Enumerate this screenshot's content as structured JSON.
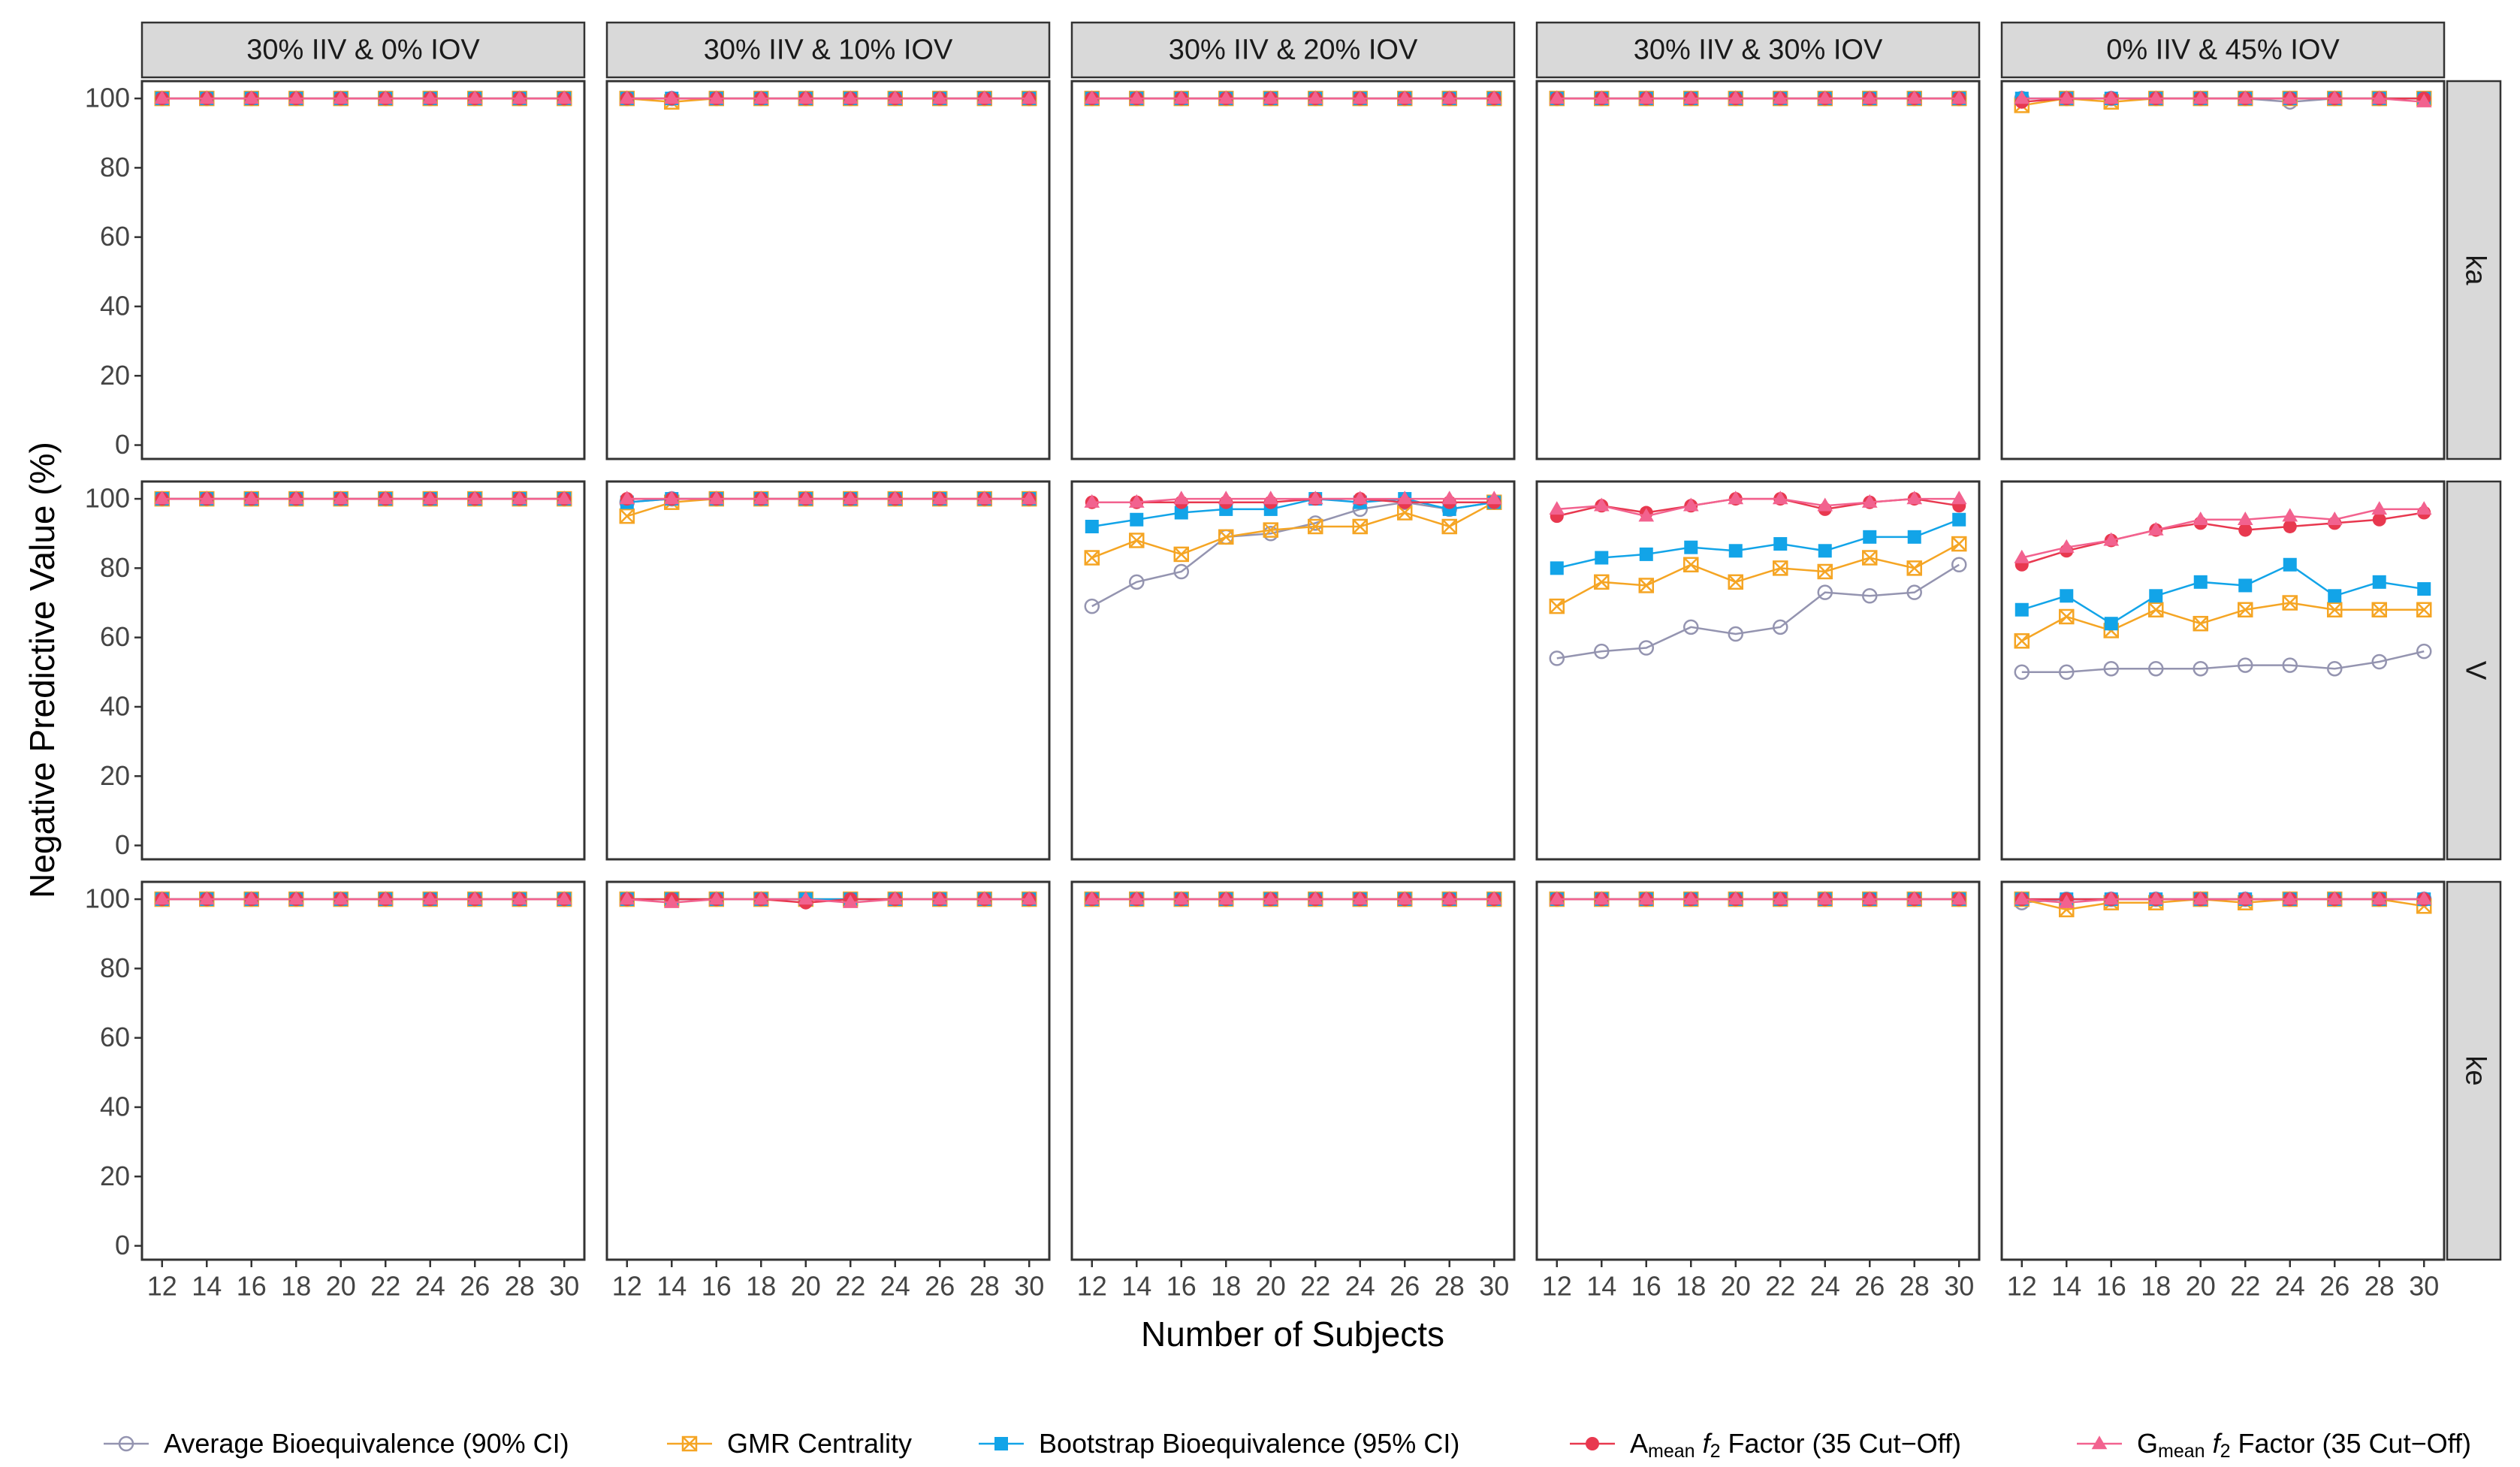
{
  "chart_data": {
    "type": "line",
    "y_label": "Negative Predictive Value (%)",
    "x_label": "Number of Subjects",
    "columns": [
      "30% IIV & 0% IOV",
      "30% IIV & 10% IOV",
      "30% IIV & 20% IOV",
      "30% IIV & 30% IOV",
      "0% IIV & 45% IOV"
    ],
    "rows": [
      "ka",
      "V",
      "ke"
    ],
    "x": [
      12,
      14,
      16,
      18,
      20,
      22,
      24,
      26,
      28,
      30
    ],
    "xlim": [
      11.1,
      30.9
    ],
    "xticks": [
      12,
      14,
      16,
      18,
      20,
      22,
      24,
      26,
      28,
      30
    ],
    "ylim": [
      -4,
      105
    ],
    "yticks": [
      0,
      20,
      40,
      60,
      80,
      100
    ],
    "series": [
      {
        "name": [
          {
            "text": "Average Bioequivalence (90% CI)"
          }
        ],
        "color": "#9494b0",
        "marker": "open-circle"
      },
      {
        "name": [
          {
            "text": "GMR Centrality"
          }
        ],
        "color": "#f5a524",
        "marker": "crossed-square"
      },
      {
        "name": [
          {
            "text": "Bootstrap Bioequivalence (95% CI)"
          }
        ],
        "color": "#12a4e8",
        "marker": "square"
      },
      {
        "name": [
          {
            "text": "A"
          },
          {
            "text": "mean",
            "style": "sub"
          },
          {
            "text": "f",
            "style": "italic"
          },
          {
            "text": "2",
            "style": "sub"
          },
          {
            "text": "Factor (35 Cut−Off)"
          }
        ],
        "color": "#e8384f",
        "marker": "circle"
      },
      {
        "name": [
          {
            "text": "G"
          },
          {
            "text": "mean",
            "style": "sub"
          },
          {
            "text": "f",
            "style": "italic"
          },
          {
            "text": "2",
            "style": "sub"
          },
          {
            "text": "Factor (35 Cut−Off)"
          }
        ],
        "color": "#f2628f",
        "marker": "triangle"
      }
    ],
    "panels": [
      [
        [
          [
            100,
            100,
            100,
            100,
            100,
            100,
            100,
            100,
            100,
            100
          ],
          [
            100,
            100,
            100,
            100,
            100,
            100,
            100,
            100,
            100,
            100
          ],
          [
            100,
            100,
            100,
            100,
            100,
            100,
            100,
            100,
            100,
            100
          ],
          [
            100,
            100,
            100,
            100,
            100,
            100,
            100,
            100,
            100,
            100
          ],
          [
            100,
            100,
            100,
            100,
            100,
            100,
            100,
            100,
            100,
            100
          ]
        ],
        [
          [
            100,
            100,
            100,
            100,
            100,
            100,
            100,
            100,
            100,
            100
          ],
          [
            100,
            99,
            100,
            100,
            100,
            100,
            100,
            100,
            100,
            100
          ],
          [
            100,
            100,
            100,
            100,
            100,
            100,
            100,
            100,
            100,
            100
          ],
          [
            100,
            100,
            100,
            100,
            100,
            100,
            100,
            100,
            100,
            100
          ],
          [
            100,
            100,
            100,
            100,
            100,
            100,
            100,
            100,
            100,
            100
          ]
        ],
        [
          [
            100,
            100,
            100,
            100,
            100,
            100,
            100,
            100,
            100,
            100
          ],
          [
            100,
            100,
            100,
            100,
            100,
            100,
            100,
            100,
            100,
            100
          ],
          [
            100,
            100,
            100,
            100,
            100,
            100,
            100,
            100,
            100,
            100
          ],
          [
            100,
            100,
            100,
            100,
            100,
            100,
            100,
            100,
            100,
            100
          ],
          [
            100,
            100,
            100,
            100,
            100,
            100,
            100,
            100,
            100,
            100
          ]
        ],
        [
          [
            100,
            100,
            100,
            100,
            100,
            100,
            100,
            100,
            100,
            100
          ],
          [
            100,
            100,
            100,
            100,
            100,
            100,
            100,
            100,
            100,
            100
          ],
          [
            100,
            100,
            100,
            100,
            100,
            100,
            100,
            100,
            100,
            100
          ],
          [
            100,
            100,
            100,
            100,
            100,
            100,
            100,
            100,
            100,
            100
          ],
          [
            100,
            100,
            100,
            100,
            100,
            100,
            100,
            100,
            100,
            100
          ]
        ],
        [
          [
            100,
            100,
            100,
            100,
            100,
            100,
            99,
            100,
            100,
            100
          ],
          [
            98,
            100,
            99,
            100,
            100,
            100,
            100,
            100,
            100,
            100
          ],
          [
            100,
            100,
            100,
            100,
            100,
            100,
            100,
            100,
            100,
            100
          ],
          [
            99,
            100,
            100,
            100,
            100,
            100,
            100,
            100,
            100,
            100
          ],
          [
            100,
            100,
            100,
            100,
            100,
            100,
            100,
            100,
            100,
            99
          ]
        ]
      ],
      [
        [
          [
            100,
            100,
            100,
            100,
            100,
            100,
            100,
            100,
            100,
            100
          ],
          [
            100,
            100,
            100,
            100,
            100,
            100,
            100,
            100,
            100,
            100
          ],
          [
            100,
            100,
            100,
            100,
            100,
            100,
            100,
            100,
            100,
            100
          ],
          [
            100,
            100,
            100,
            100,
            100,
            100,
            100,
            100,
            100,
            100
          ],
          [
            100,
            100,
            100,
            100,
            100,
            100,
            100,
            100,
            100,
            100
          ]
        ],
        [
          [
            99,
            100,
            100,
            100,
            100,
            100,
            100,
            100,
            100,
            100
          ],
          [
            95,
            99,
            100,
            100,
            100,
            100,
            100,
            100,
            100,
            100
          ],
          [
            99,
            100,
            100,
            100,
            100,
            100,
            100,
            100,
            100,
            100
          ],
          [
            100,
            100,
            100,
            100,
            100,
            100,
            100,
            100,
            100,
            100
          ],
          [
            100,
            100,
            100,
            100,
            100,
            100,
            100,
            100,
            100,
            100
          ]
        ],
        [
          [
            69,
            76,
            79,
            89,
            90,
            93,
            97,
            99,
            97,
            99
          ],
          [
            83,
            88,
            84,
            89,
            91,
            92,
            92,
            96,
            92,
            99
          ],
          [
            92,
            94,
            96,
            97,
            97,
            100,
            99,
            100,
            97,
            99
          ],
          [
            99,
            99,
            99,
            99,
            99,
            100,
            100,
            99,
            99,
            99
          ],
          [
            99,
            99,
            100,
            100,
            100,
            100,
            100,
            100,
            100,
            100
          ]
        ],
        [
          [
            54,
            56,
            57,
            63,
            61,
            63,
            73,
            72,
            73,
            81
          ],
          [
            69,
            76,
            75,
            81,
            76,
            80,
            79,
            83,
            80,
            87
          ],
          [
            80,
            83,
            84,
            86,
            85,
            87,
            85,
            89,
            89,
            94
          ],
          [
            95,
            98,
            96,
            98,
            100,
            100,
            97,
            99,
            100,
            98
          ],
          [
            97,
            98,
            95,
            98,
            100,
            100,
            98,
            99,
            100,
            100
          ]
        ],
        [
          [
            50,
            50,
            51,
            51,
            51,
            52,
            52,
            51,
            53,
            56
          ],
          [
            59,
            66,
            62,
            68,
            64,
            68,
            70,
            68,
            68,
            68
          ],
          [
            68,
            72,
            64,
            72,
            76,
            75,
            81,
            72,
            76,
            74
          ],
          [
            81,
            85,
            88,
            91,
            93,
            91,
            92,
            93,
            94,
            96
          ],
          [
            83,
            86,
            88,
            91,
            94,
            94,
            95,
            94,
            97,
            97
          ]
        ]
      ],
      [
        [
          [
            100,
            100,
            100,
            100,
            100,
            100,
            100,
            100,
            100,
            100
          ],
          [
            100,
            100,
            100,
            100,
            100,
            100,
            100,
            100,
            100,
            100
          ],
          [
            100,
            100,
            100,
            100,
            100,
            100,
            100,
            100,
            100,
            100
          ],
          [
            100,
            100,
            100,
            100,
            100,
            100,
            100,
            100,
            100,
            100
          ],
          [
            100,
            100,
            100,
            100,
            100,
            100,
            100,
            100,
            100,
            100
          ]
        ],
        [
          [
            100,
            100,
            100,
            100,
            100,
            100,
            100,
            100,
            100,
            100
          ],
          [
            100,
            100,
            100,
            100,
            100,
            100,
            100,
            100,
            100,
            100
          ],
          [
            100,
            100,
            100,
            100,
            100,
            100,
            100,
            100,
            100,
            100
          ],
          [
            100,
            100,
            100,
            100,
            99,
            100,
            100,
            100,
            100,
            100
          ],
          [
            100,
            99,
            100,
            100,
            100,
            99,
            100,
            100,
            100,
            100
          ]
        ],
        [
          [
            100,
            100,
            100,
            100,
            100,
            100,
            100,
            100,
            100,
            100
          ],
          [
            100,
            100,
            100,
            100,
            100,
            100,
            100,
            100,
            100,
            100
          ],
          [
            100,
            100,
            100,
            100,
            100,
            100,
            100,
            100,
            100,
            100
          ],
          [
            100,
            100,
            100,
            100,
            100,
            100,
            100,
            100,
            100,
            100
          ],
          [
            100,
            100,
            100,
            100,
            100,
            100,
            100,
            100,
            100,
            100
          ]
        ],
        [
          [
            100,
            100,
            100,
            100,
            100,
            100,
            100,
            100,
            100,
            100
          ],
          [
            100,
            100,
            100,
            100,
            100,
            100,
            100,
            100,
            100,
            100
          ],
          [
            100,
            100,
            100,
            100,
            100,
            100,
            100,
            100,
            100,
            100
          ],
          [
            100,
            100,
            100,
            100,
            100,
            100,
            100,
            100,
            100,
            100
          ],
          [
            100,
            100,
            100,
            100,
            100,
            100,
            100,
            100,
            100,
            100
          ]
        ],
        [
          [
            99,
            100,
            100,
            100,
            100,
            100,
            100,
            100,
            100,
            100
          ],
          [
            100,
            97,
            99,
            99,
            100,
            99,
            100,
            100,
            100,
            98
          ],
          [
            100,
            100,
            100,
            100,
            100,
            100,
            100,
            100,
            100,
            100
          ],
          [
            100,
            100,
            100,
            100,
            100,
            100,
            100,
            100,
            100,
            100
          ],
          [
            100,
            99,
            100,
            100,
            100,
            100,
            100,
            100,
            100,
            100
          ]
        ]
      ]
    ]
  }
}
